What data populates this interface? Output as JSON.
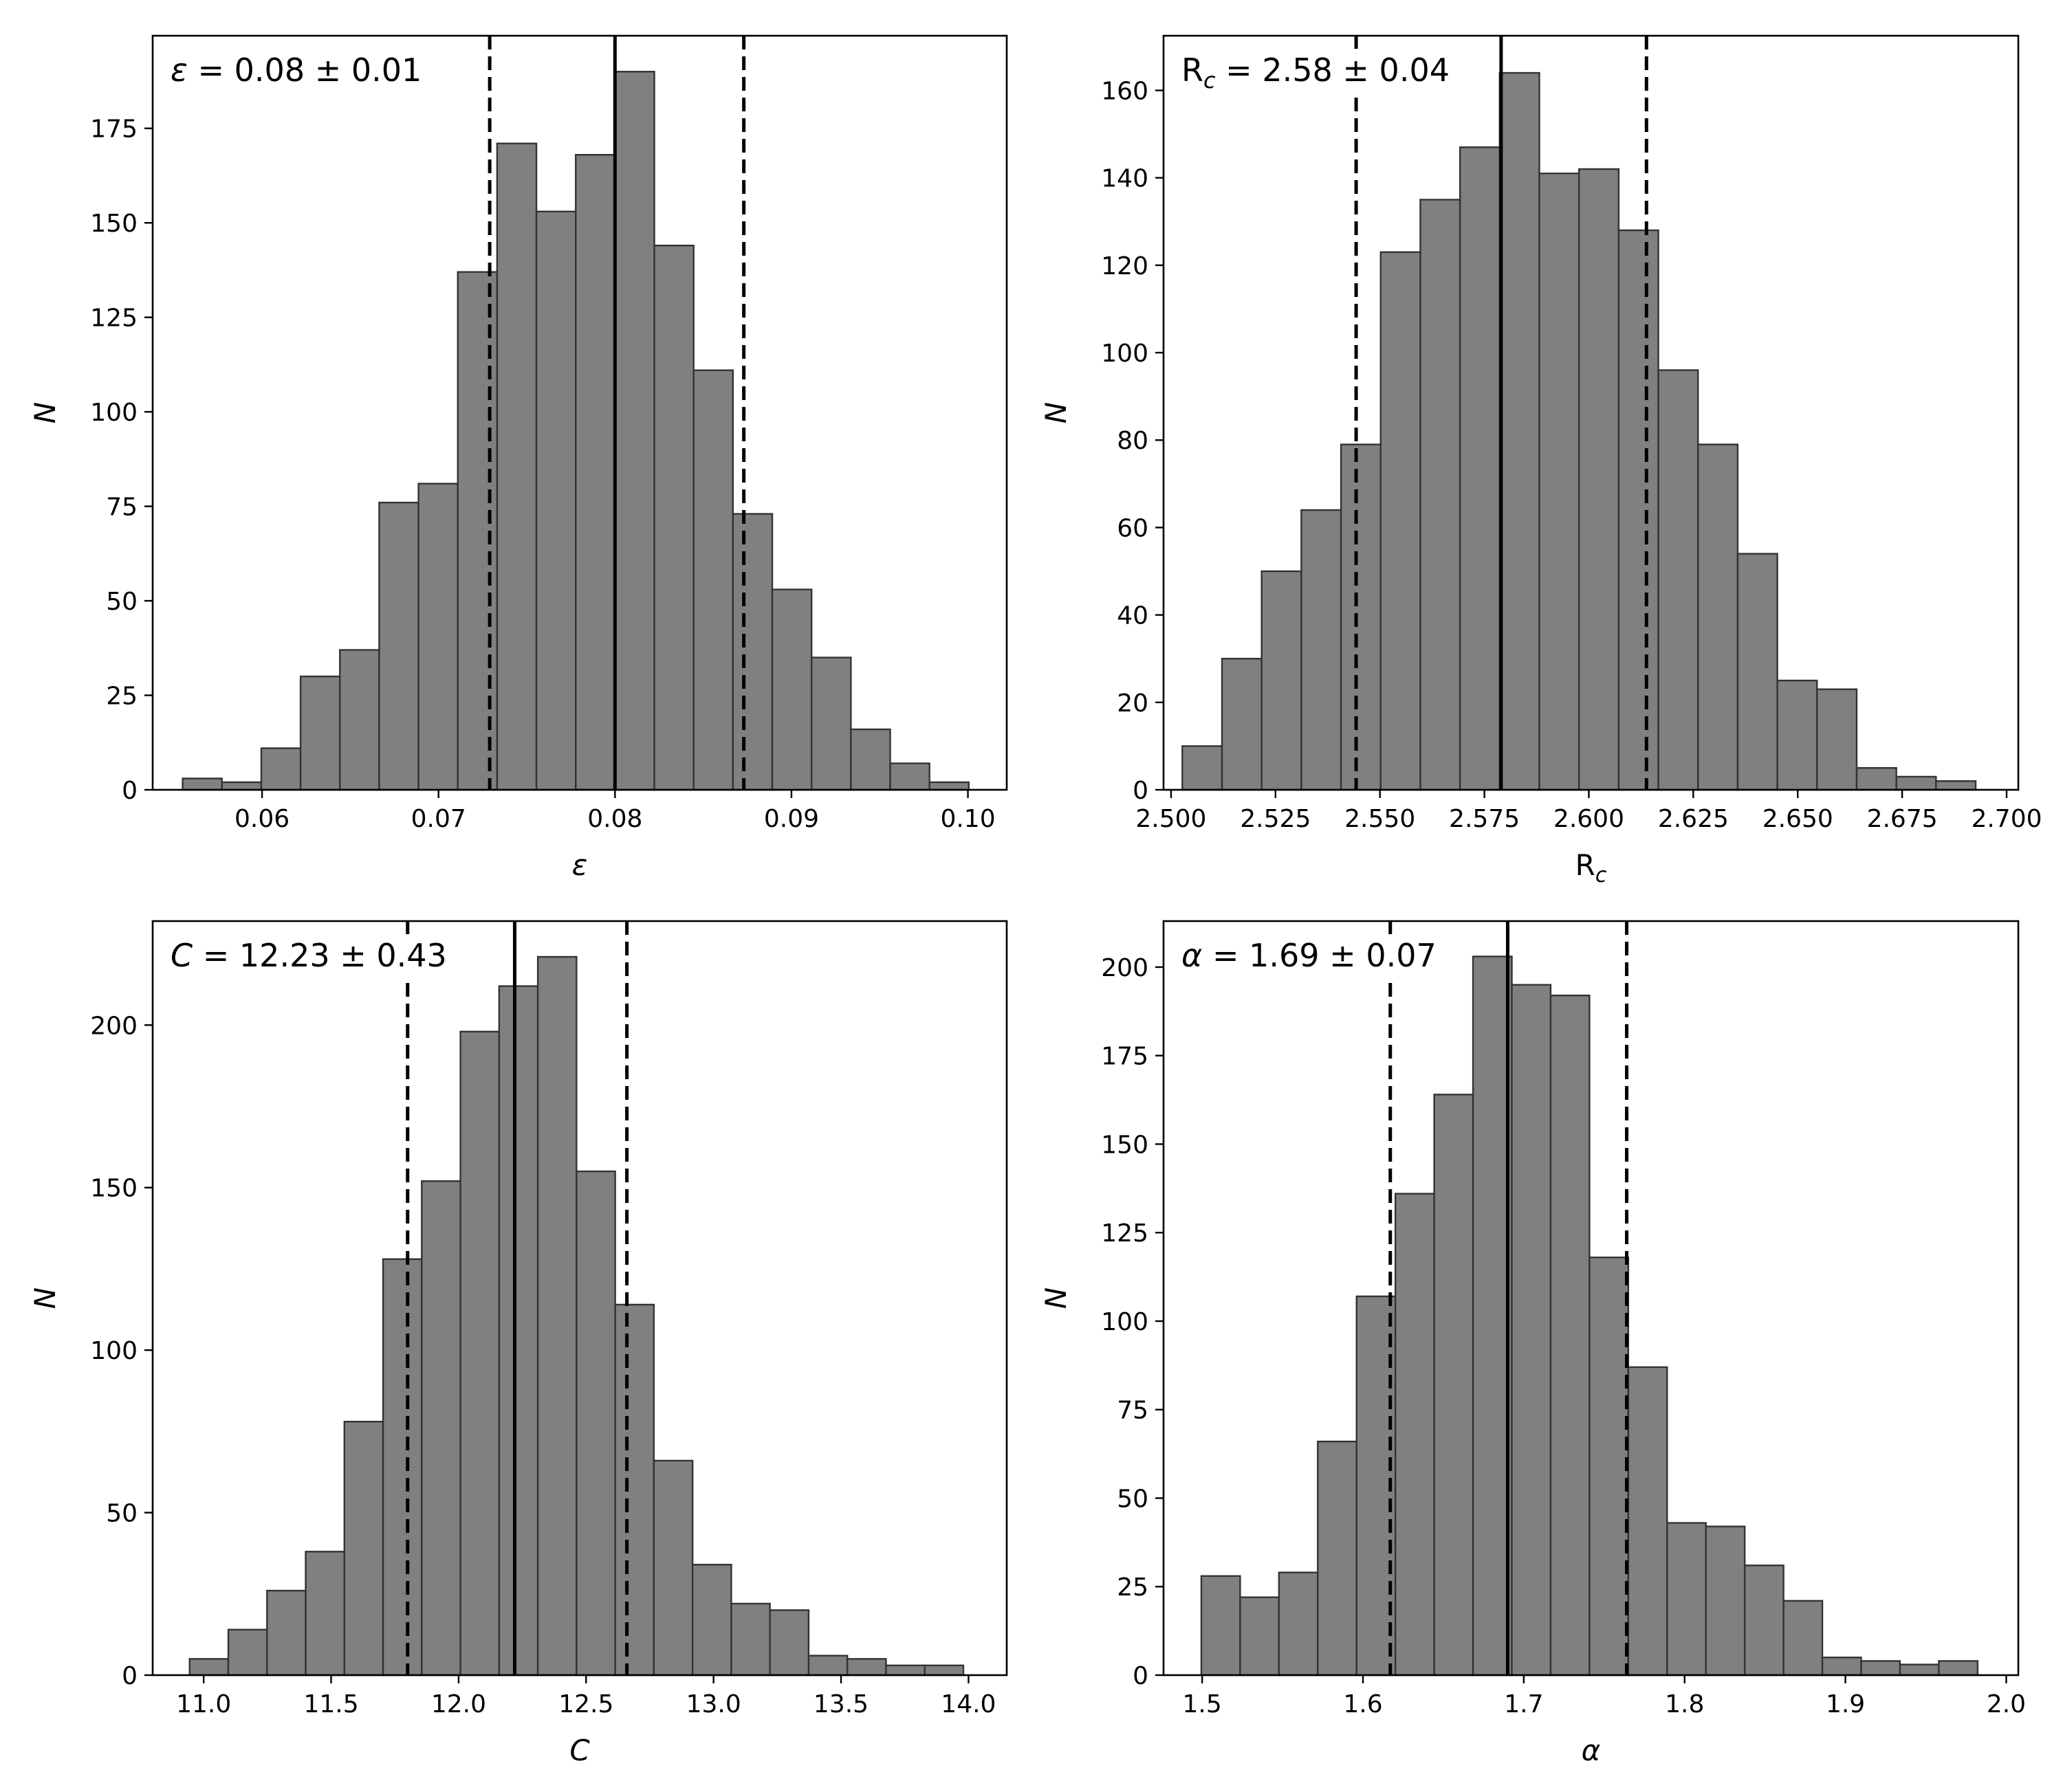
{
  "chart_data": [
    {
      "type": "bar",
      "panel": "top-left",
      "annotation": {
        "symbol": "ε",
        "sub": "",
        "rest": " = 0.08 ± 0.01"
      },
      "xlabel": {
        "main": "ε",
        "sub": ""
      },
      "ylabel": "N",
      "xlim": [
        0.0538,
        0.1022
      ],
      "ylim": [
        0,
        199.5
      ],
      "xticks": [
        0.06,
        0.07,
        0.08,
        0.09,
        0.1
      ],
      "xtick_labels": [
        "0.06",
        "0.07",
        "0.08",
        "0.09",
        "0.10"
      ],
      "yticks": [
        0,
        25,
        50,
        75,
        100,
        125,
        150,
        175
      ],
      "ytick_labels": [
        "0",
        "25",
        "50",
        "75",
        "100",
        "125",
        "150",
        "175"
      ],
      "bin_start": 0.0555,
      "bin_width": 0.0022275,
      "values": [
        3,
        2,
        11,
        30,
        37,
        76,
        81,
        137,
        171,
        153,
        168,
        190,
        144,
        111,
        73,
        53,
        35,
        16,
        7,
        2
      ],
      "median": 0.08,
      "ci_low": 0.0729,
      "ci_high": 0.0873
    },
    {
      "type": "bar",
      "panel": "top-right",
      "annotation": {
        "symbol": "R",
        "sub": "c",
        "rest": " = 2.58 ± 0.04"
      },
      "xlabel": {
        "main": "R",
        "sub": "c"
      },
      "ylabel": "N",
      "xlim": [
        2.4982,
        2.7028
      ],
      "ylim": [
        0,
        172.5
      ],
      "xticks": [
        2.5,
        2.525,
        2.55,
        2.575,
        2.6,
        2.625,
        2.65,
        2.675,
        2.7
      ],
      "xtick_labels": [
        "2.500",
        "2.525",
        "2.550",
        "2.575",
        "2.600",
        "2.625",
        "2.650",
        "2.675",
        "2.700"
      ],
      "yticks": [
        0,
        20,
        40,
        60,
        80,
        100,
        120,
        140,
        160
      ],
      "ytick_labels": [
        "0",
        "20",
        "40",
        "60",
        "80",
        "100",
        "120",
        "140",
        "160"
      ],
      "bin_start": 2.5027,
      "bin_width": 0.009495,
      "values": [
        10,
        30,
        50,
        64,
        79,
        123,
        135,
        147,
        164,
        141,
        142,
        128,
        96,
        79,
        54,
        25,
        23,
        5,
        3,
        2
      ],
      "median": 2.579,
      "ci_low": 2.5443,
      "ci_high": 2.6138
    },
    {
      "type": "bar",
      "panel": "bottom-left",
      "annotation": {
        "symbol": "C",
        "sub": "",
        "rest": " = 12.23 ± 0.43"
      },
      "xlabel": {
        "main": "C",
        "sub": ""
      },
      "ylabel": "N",
      "xlim": [
        10.8,
        14.15
      ],
      "ylim": [
        0,
        232
      ],
      "xticks": [
        11.0,
        11.5,
        12.0,
        12.5,
        13.0,
        13.5,
        14.0
      ],
      "xtick_labels": [
        "11.0",
        "11.5",
        "12.0",
        "12.5",
        "13.0",
        "13.5",
        "14.0"
      ],
      "yticks": [
        0,
        50,
        100,
        150,
        200
      ],
      "ytick_labels": [
        "0",
        "50",
        "100",
        "150",
        "200"
      ],
      "bin_start": 10.945,
      "bin_width": 0.15175,
      "values": [
        5,
        14,
        26,
        38,
        78,
        128,
        152,
        198,
        212,
        221,
        155,
        114,
        66,
        34,
        22,
        20,
        6,
        5,
        3,
        3
      ],
      "median": 12.22,
      "ci_low": 11.8,
      "ci_high": 12.66
    },
    {
      "type": "bar",
      "panel": "bottom-right",
      "annotation": {
        "symbol": "α",
        "sub": "",
        "rest": " = 1.69 ± 0.07"
      },
      "xlabel": {
        "main": "α",
        "sub": ""
      },
      "ylabel": "N",
      "xlim": [
        1.476,
        2.0075
      ],
      "ylim": [
        0,
        213
      ],
      "xticks": [
        1.5,
        1.6,
        1.7,
        1.8,
        1.9,
        2.0
      ],
      "xtick_labels": [
        "1.5",
        "1.6",
        "1.7",
        "1.8",
        "1.9",
        "2.0"
      ],
      "yticks": [
        0,
        25,
        50,
        75,
        100,
        125,
        150,
        175,
        200
      ],
      "ytick_labels": [
        "0",
        "25",
        "50",
        "75",
        "100",
        "125",
        "150",
        "175",
        "200"
      ],
      "bin_start": 1.4995,
      "bin_width": 0.024135,
      "values": [
        28,
        22,
        29,
        66,
        107,
        136,
        164,
        203,
        195,
        192,
        118,
        87,
        43,
        42,
        31,
        21,
        5,
        4,
        3,
        4
      ],
      "median": 1.69,
      "ci_low": 1.617,
      "ci_high": 1.764
    }
  ]
}
